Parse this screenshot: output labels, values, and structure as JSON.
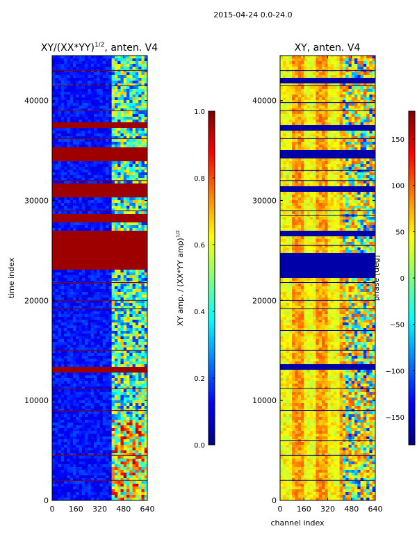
{
  "suptitle": "2015-04-24 0.0-24.0",
  "colormap_stops": [
    "#00007f",
    "#0000ff",
    "#007fff",
    "#00ffff",
    "#7fff7f",
    "#ffff00",
    "#ff7f00",
    "#ff0000",
    "#7f0000"
  ],
  "chart_data": [
    {
      "type": "heatmap",
      "title": "XY/(XX*YY)^1/2, anten. V4",
      "title_main": "XY/(XX*YY)",
      "title_exp": "1/2",
      "title_rest": ", anten. V4",
      "xlabel": "",
      "ylabel": "time index",
      "xlim": [
        0,
        640
      ],
      "ylim": [
        0,
        44500
      ],
      "xticks": [
        0,
        160,
        320,
        480,
        640
      ],
      "yticks": [
        0,
        10000,
        20000,
        30000,
        40000
      ],
      "colorbar": {
        "label": "XY amp. / (XX*YY amp)^1/2",
        "label_main": "XY amp. / (XX*YY amp)",
        "label_exp": "1/2",
        "range": [
          0.0,
          1.0
        ],
        "ticks": [
          "0.0",
          "0.2",
          "0.4",
          "0.6",
          "0.8",
          "1.0"
        ]
      }
    },
    {
      "type": "heatmap",
      "title": "XY, anten. V4",
      "xlabel": "channel index",
      "ylabel": "",
      "xlim": [
        0,
        640
      ],
      "ylim": [
        0,
        44500
      ],
      "xticks": [
        0,
        160,
        320,
        480,
        640
      ],
      "yticks": [
        0,
        10000,
        20000,
        30000,
        40000
      ],
      "colorbar": {
        "label": "phase [deg]",
        "range": [
          -180,
          180
        ],
        "ticks": [
          "−150",
          "−100",
          "−50",
          "0",
          "50",
          "100",
          "150"
        ]
      }
    }
  ]
}
